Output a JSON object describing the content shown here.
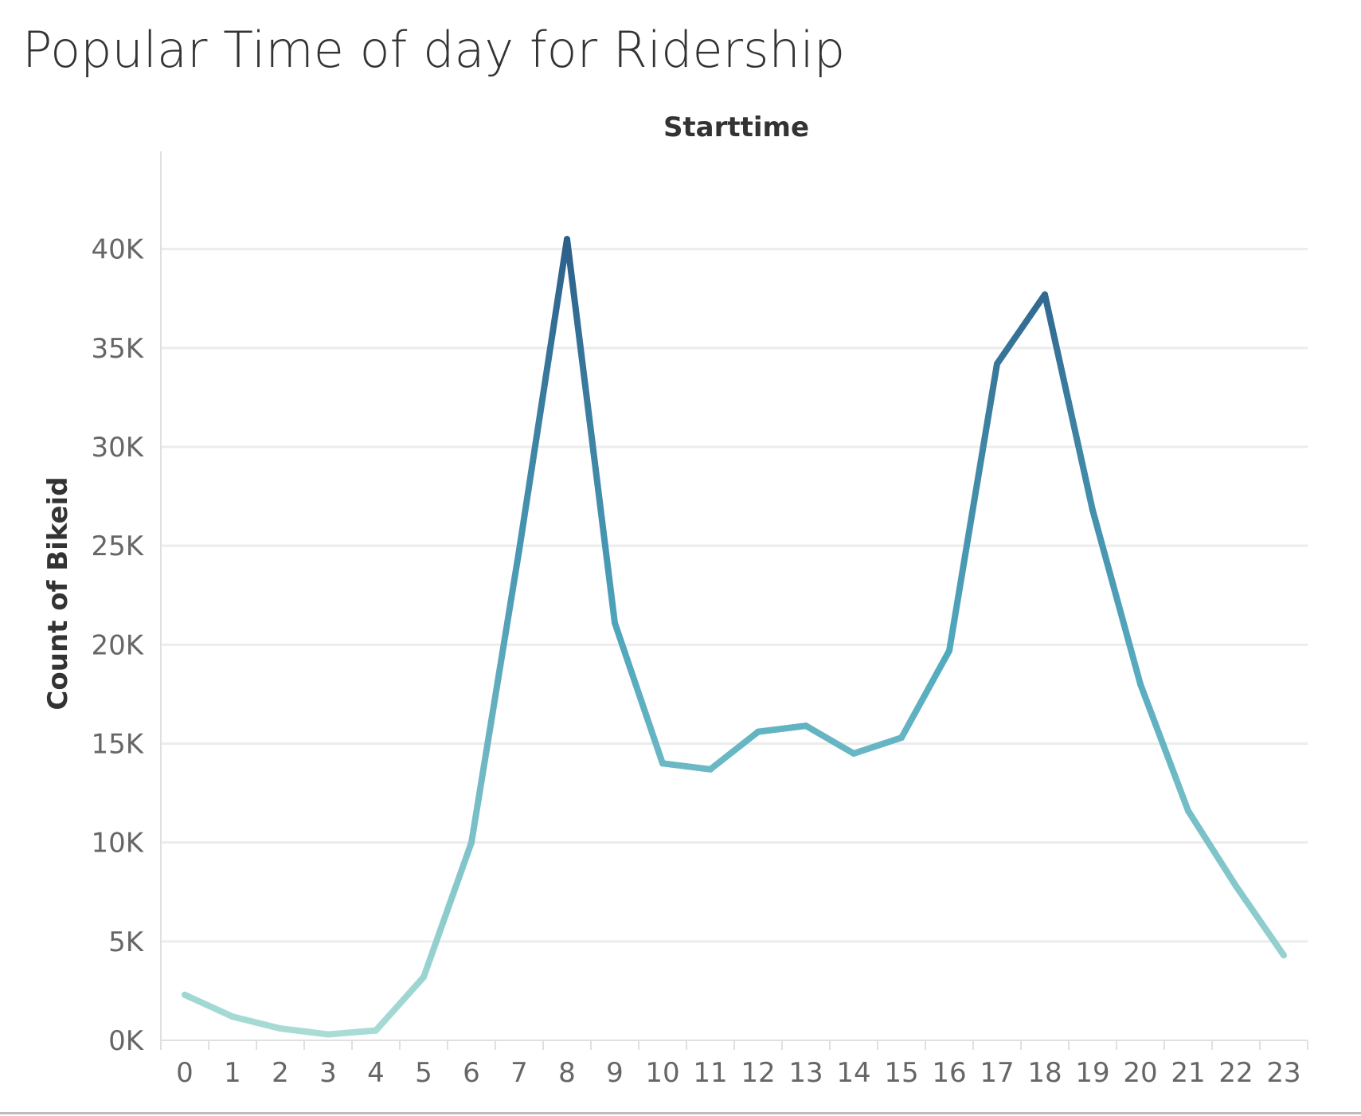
{
  "chart_data": {
    "type": "line",
    "title": "Popular Time of day for Ridership",
    "column_header": "Starttime",
    "xlabel": "",
    "ylabel": "Count of Bikeid",
    "x": [
      0,
      1,
      2,
      3,
      4,
      5,
      6,
      7,
      8,
      9,
      10,
      11,
      12,
      13,
      14,
      15,
      16,
      17,
      18,
      19,
      20,
      21,
      22,
      23
    ],
    "x_tick_labels": [
      "0",
      "1",
      "2",
      "3",
      "4",
      "5",
      "6",
      "7",
      "8",
      "9",
      "10",
      "11",
      "12",
      "13",
      "14",
      "15",
      "16",
      "17",
      "18",
      "19",
      "20",
      "21",
      "22",
      "23"
    ],
    "series": [
      {
        "values": [
          2300,
          1200,
          600,
          300,
          500,
          3200,
          10000,
          24800,
          40500,
          21100,
          14000,
          13700,
          15600,
          15900,
          14500,
          15300,
          19700,
          34200,
          37700,
          26800,
          18000,
          11600,
          7800,
          4300
        ]
      }
    ],
    "ylim": [
      0,
      42000
    ],
    "y_ticks": [
      0,
      5000,
      10000,
      15000,
      20000,
      25000,
      30000,
      35000,
      40000
    ],
    "y_tick_labels": [
      "0K",
      "5K",
      "10K",
      "15K",
      "20K",
      "25K",
      "30K",
      "35K",
      "40K"
    ],
    "grid": true,
    "color_scale": {
      "low": "#a8dcd4",
      "mid": "#4ea7bd",
      "high": "#2c5f8a"
    },
    "gridline_color": "#ececec",
    "axis_color": "#e0e0e0"
  }
}
